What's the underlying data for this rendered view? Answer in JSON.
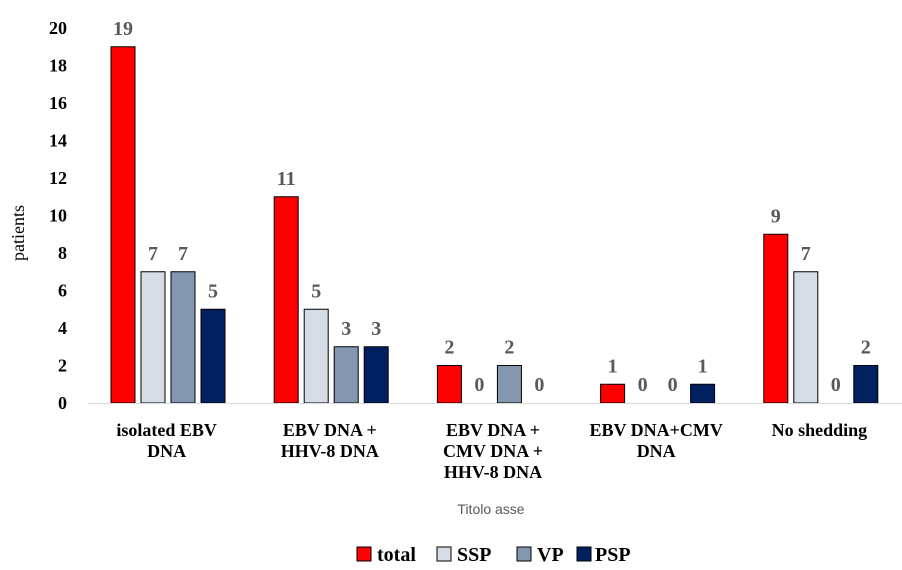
{
  "chart_data": {
    "type": "bar",
    "title": "",
    "xlabel": "Titolo asse",
    "ylabel": "patients",
    "ylim": [
      0,
      20
    ],
    "yticks": [
      0,
      2,
      4,
      6,
      8,
      10,
      12,
      14,
      16,
      18,
      20
    ],
    "grid": false,
    "legend_position": "bottom",
    "categories": [
      [
        "isolated EBV",
        "DNA"
      ],
      [
        "EBV DNA +",
        "HHV-8 DNA"
      ],
      [
        "EBV DNA +",
        "CMV DNA +",
        "HHV-8 DNA"
      ],
      [
        "EBV DNA+CMV",
        "DNA"
      ],
      [
        "No shedding"
      ]
    ],
    "series": [
      {
        "name": "total",
        "color": "#ff0000",
        "values": [
          19,
          11,
          2,
          1,
          9
        ]
      },
      {
        "name": "SSP",
        "color": "#d6dce5",
        "values": [
          7,
          5,
          0,
          0,
          7
        ]
      },
      {
        "name": "VP",
        "color": "#8497b0",
        "values": [
          7,
          3,
          2,
          0,
          0
        ]
      },
      {
        "name": "PSP",
        "color": "#002060",
        "values": [
          5,
          3,
          0,
          1,
          2
        ]
      }
    ]
  }
}
